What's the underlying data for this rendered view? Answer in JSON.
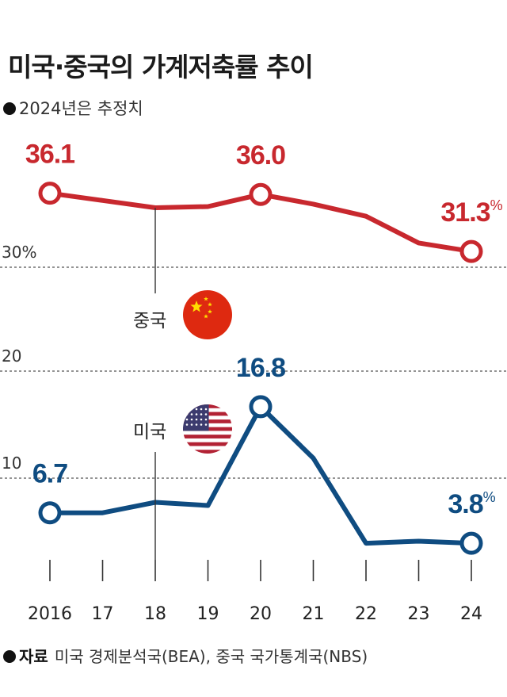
{
  "title": "미국·중국의 가계저축률 추이",
  "subtitle": "2024년은 추정치",
  "source": {
    "label": "자료",
    "text": "미국 경제분석국(BEA), 중국 국가통계국(NBS)"
  },
  "colors": {
    "china": "#c8282e",
    "us": "#0f4c81",
    "grid": "#555555",
    "text": "#222222"
  },
  "icons": {
    "china": "china-flag-icon",
    "us": "us-flag-icon"
  },
  "chart_data": {
    "type": "line",
    "x": [
      2016,
      2017,
      2018,
      2019,
      2020,
      2021,
      2022,
      2023,
      2024
    ],
    "tick_labels": [
      "2016",
      "17",
      "18",
      "19",
      "20",
      "21",
      "22",
      "23",
      "24"
    ],
    "ylim": [
      0,
      40
    ],
    "y_ticks": [
      {
        "value": 30,
        "label": "30%"
      },
      {
        "value": 20,
        "label": "20"
      },
      {
        "value": 10,
        "label": "10"
      }
    ],
    "series": [
      {
        "name": "중국",
        "key": "china",
        "values": [
          36.1,
          35.5,
          34.9,
          35.0,
          36.0,
          35.2,
          34.2,
          32.0,
          31.3
        ],
        "labels": [
          {
            "index": 0,
            "text": "36.1",
            "unit": ""
          },
          {
            "index": 4,
            "text": "36.0",
            "unit": ""
          },
          {
            "index": 8,
            "text": "31.3",
            "unit": "%"
          }
        ],
        "markers": [
          0,
          4,
          8
        ],
        "legend_index": 2
      },
      {
        "name": "미국",
        "key": "us",
        "values": [
          6.7,
          6.7,
          7.7,
          7.4,
          16.8,
          11.9,
          3.8,
          4.0,
          3.8
        ],
        "labels": [
          {
            "index": 0,
            "text": "6.7",
            "unit": ""
          },
          {
            "index": 4,
            "text": "16.8",
            "unit": ""
          },
          {
            "index": 8,
            "text": "3.8",
            "unit": "%"
          }
        ],
        "markers": [
          0,
          4,
          8
        ],
        "legend_index": 2
      }
    ]
  }
}
